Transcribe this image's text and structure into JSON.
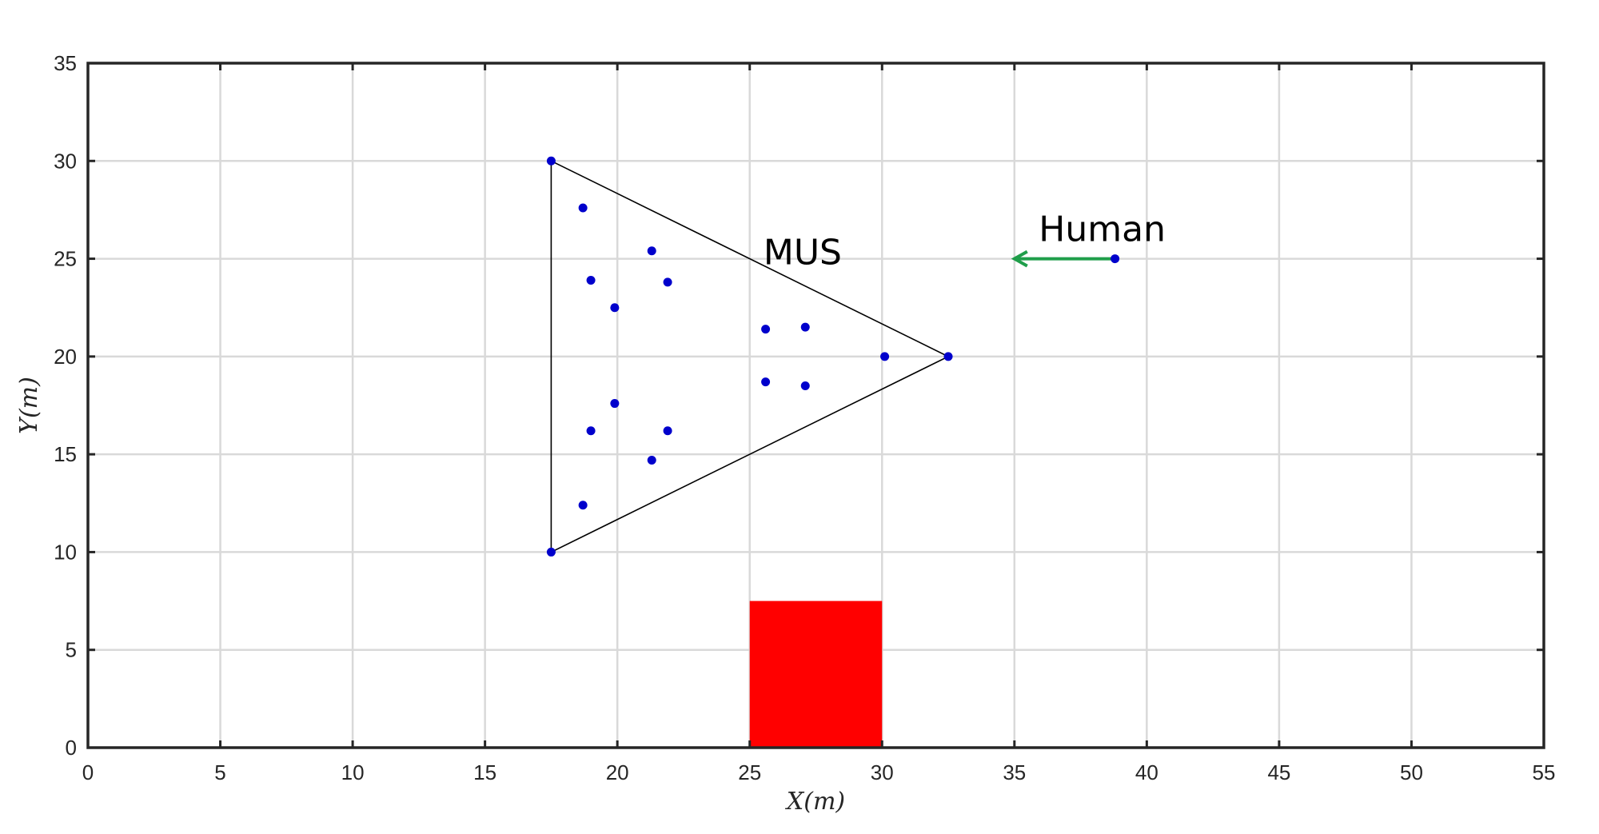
{
  "chart_data": {
    "type": "scatter",
    "title": "",
    "xlabel": "X(m)",
    "ylabel": "Y(m)",
    "xlim": [
      0,
      55
    ],
    "ylim": [
      0,
      35
    ],
    "xticks": [
      0,
      5,
      10,
      15,
      20,
      25,
      30,
      35,
      40,
      45,
      50,
      55
    ],
    "yticks": [
      0,
      5,
      10,
      15,
      20,
      25,
      30,
      35
    ],
    "grid": true,
    "colors": {
      "points": "#0000cc",
      "triangle": "#000000",
      "obstacle": "#ff0000",
      "arrow": "#1f9e4a",
      "grid": "#d9d9d9",
      "axes": "#262626"
    },
    "points": [
      {
        "x": 17.5,
        "y": 30.0
      },
      {
        "x": 17.5,
        "y": 10.0
      },
      {
        "x": 32.5,
        "y": 20.0
      },
      {
        "x": 18.7,
        "y": 27.6
      },
      {
        "x": 21.3,
        "y": 25.4
      },
      {
        "x": 19.0,
        "y": 23.9
      },
      {
        "x": 21.9,
        "y": 23.8
      },
      {
        "x": 19.9,
        "y": 22.5
      },
      {
        "x": 25.6,
        "y": 21.4
      },
      {
        "x": 27.1,
        "y": 21.5
      },
      {
        "x": 30.1,
        "y": 20.0
      },
      {
        "x": 25.6,
        "y": 18.7
      },
      {
        "x": 27.1,
        "y": 18.5
      },
      {
        "x": 19.9,
        "y": 17.6
      },
      {
        "x": 19.0,
        "y": 16.2
      },
      {
        "x": 21.9,
        "y": 16.2
      },
      {
        "x": 21.3,
        "y": 14.7
      },
      {
        "x": 18.7,
        "y": 12.4
      }
    ],
    "triangle": [
      [
        17.5,
        30.0
      ],
      [
        32.5,
        20.0
      ],
      [
        17.5,
        10.0
      ]
    ],
    "obstacle": {
      "x0": 25.0,
      "x1": 30.0,
      "y0": 0.0,
      "y1": 7.5
    },
    "human": {
      "position": {
        "x": 38.8,
        "y": 25.0
      },
      "arrow_to": {
        "x": 35.0,
        "y": 25.0
      },
      "label": "Human"
    },
    "mus_label": {
      "text": "MUS",
      "x": 27.0,
      "y": 25.7
    }
  }
}
